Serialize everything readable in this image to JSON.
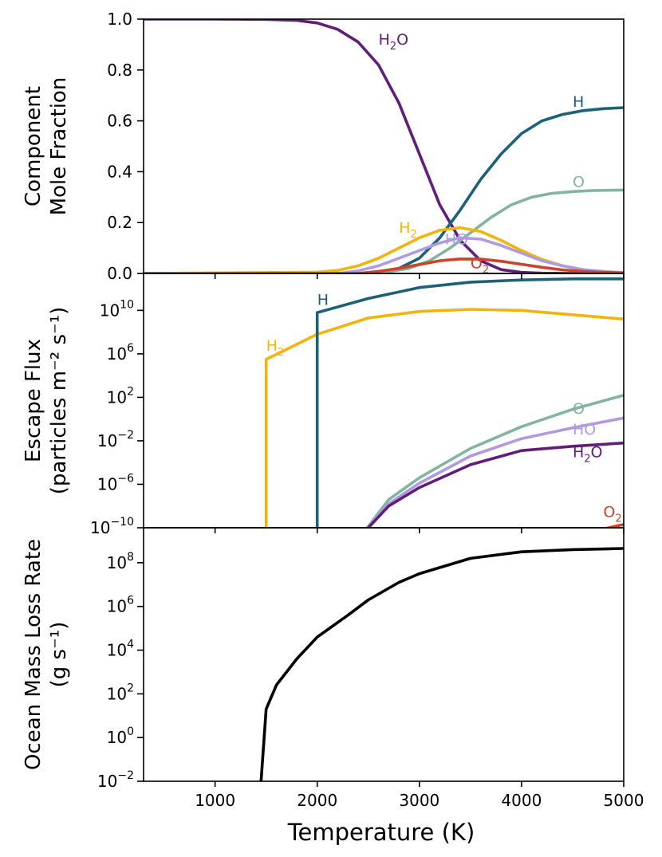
{
  "chart_data": [
    {
      "type": "line",
      "ylabel": [
        "Component",
        "Mole Fraction"
      ],
      "yscale": "linear",
      "xlim": [
        300,
        5000
      ],
      "ylim": [
        0,
        1.0
      ],
      "yticks": [
        "0.0",
        "0.2",
        "0.4",
        "0.6",
        "0.8",
        "1.0"
      ],
      "series": [
        {
          "name": "H2O",
          "color": "#601e7a",
          "x": [
            300,
            1000,
            1500,
            1800,
            2000,
            2200,
            2400,
            2600,
            2800,
            3000,
            3200,
            3400,
            3600,
            3800,
            4000,
            4200,
            4500,
            5000
          ],
          "y": [
            1.0,
            1.0,
            0.999,
            0.995,
            0.985,
            0.96,
            0.91,
            0.82,
            0.67,
            0.47,
            0.27,
            0.13,
            0.05,
            0.015,
            0.004,
            0.001,
            0.0,
            0.0
          ]
        },
        {
          "name": "H",
          "color": "#1c6179",
          "x": [
            300,
            2500,
            2800,
            3000,
            3200,
            3400,
            3600,
            3800,
            4000,
            4200,
            4400,
            4600,
            4800,
            5000
          ],
          "y": [
            0,
            0.0,
            0.02,
            0.06,
            0.14,
            0.25,
            0.37,
            0.47,
            0.55,
            0.6,
            0.625,
            0.64,
            0.648,
            0.652
          ]
        },
        {
          "name": "O",
          "color": "#82b4a0",
          "x": [
            300,
            2600,
            2900,
            3100,
            3300,
            3500,
            3700,
            3900,
            4100,
            4300,
            4500,
            4700,
            5000
          ],
          "y": [
            0,
            0.0,
            0.02,
            0.05,
            0.1,
            0.16,
            0.22,
            0.27,
            0.3,
            0.315,
            0.322,
            0.326,
            0.328
          ]
        },
        {
          "name": "H2",
          "color": "#f1b408",
          "x": [
            300,
            2000,
            2200,
            2400,
            2600,
            2800,
            3000,
            3200,
            3400,
            3600,
            3800,
            4000,
            4200,
            4400,
            4600,
            4800,
            5000
          ],
          "y": [
            0,
            0.005,
            0.012,
            0.03,
            0.06,
            0.1,
            0.14,
            0.17,
            0.18,
            0.165,
            0.13,
            0.09,
            0.055,
            0.03,
            0.015,
            0.007,
            0.003
          ]
        },
        {
          "name": "HO",
          "color": "#b09be2",
          "x": [
            300,
            2200,
            2400,
            2600,
            2800,
            3000,
            3200,
            3400,
            3600,
            3800,
            4000,
            4200,
            4400,
            4600,
            4800,
            5000
          ],
          "y": [
            0,
            0.0,
            0.01,
            0.03,
            0.06,
            0.09,
            0.12,
            0.14,
            0.135,
            0.11,
            0.08,
            0.05,
            0.03,
            0.015,
            0.008,
            0.003
          ]
        },
        {
          "name": "O2",
          "color": "#cd432c",
          "x": [
            300,
            2400,
            2600,
            2800,
            3000,
            3200,
            3400,
            3600,
            3800,
            4000,
            4200,
            4400,
            4600,
            4800,
            5000
          ],
          "y": [
            0,
            0.0,
            0.008,
            0.02,
            0.035,
            0.05,
            0.057,
            0.056,
            0.048,
            0.036,
            0.024,
            0.014,
            0.008,
            0.004,
            0.002
          ]
        }
      ],
      "annotations": [
        {
          "base": "H",
          "sub": "2",
          "tail": "O",
          "color": "#601e7a",
          "x": 2600,
          "y": 0.9
        },
        {
          "base": "H",
          "sub": "",
          "tail": "",
          "color": "#1c6179",
          "x": 4500,
          "y": 0.655
        },
        {
          "base": "O",
          "sub": "",
          "tail": "",
          "color": "#82b4a0",
          "x": 4500,
          "y": 0.34
        },
        {
          "base": "H",
          "sub": "2",
          "tail": "",
          "color": "#f1b408",
          "x": 2800,
          "y": 0.16
        },
        {
          "base": "HO",
          "sub": "",
          "tail": "",
          "color": "#b09be2",
          "x": 3250,
          "y": 0.115
        },
        {
          "base": "O",
          "sub": "2",
          "tail": "",
          "color": "#cd432c",
          "x": 3500,
          "y": 0.02
        }
      ]
    },
    {
      "type": "line",
      "ylabel": [
        "Escape Flux",
        "(particles m⁻² s⁻¹)"
      ],
      "yscale": "log",
      "xlim": [
        300,
        5000
      ],
      "ylim_exp": [
        -10,
        13.4
      ],
      "yticks": [
        {
          "base": "10",
          "exp": "10",
          "e": 10
        },
        {
          "base": "10",
          "exp": "6",
          "e": 6
        },
        {
          "base": "10",
          "exp": "2",
          "e": 2
        },
        {
          "base": "10",
          "exp": "−2",
          "e": -2
        },
        {
          "base": "10",
          "exp": "−6",
          "e": -6
        },
        {
          "base": "10",
          "exp": "−10",
          "e": -10
        }
      ],
      "series": [
        {
          "name": "H2",
          "color": "#f1b408",
          "x": [
            1500,
            1500,
            2000,
            2500,
            3000,
            3500,
            4000,
            4500,
            5000
          ],
          "log10y": [
            -10.5,
            5.5,
            7.8,
            9.3,
            9.9,
            10.1,
            10.0,
            9.6,
            9.2
          ]
        },
        {
          "name": "H",
          "color": "#1c6179",
          "x": [
            2000,
            2000,
            2500,
            3000,
            3500,
            4000,
            4500,
            5000
          ],
          "log10y": [
            -10.5,
            9.8,
            11.1,
            12.1,
            12.6,
            12.8,
            12.9,
            12.9
          ]
        },
        {
          "name": "O",
          "color": "#82b4a0",
          "x": [
            2450,
            2700,
            3000,
            3500,
            4000,
            4500,
            5000
          ],
          "log10y": [
            -10.5,
            -7.4,
            -5.4,
            -2.7,
            -0.7,
            0.9,
            2.2
          ]
        },
        {
          "name": "HO",
          "color": "#b09be2",
          "x": [
            2450,
            2700,
            3000,
            3500,
            4000,
            4500,
            5000
          ],
          "log10y": [
            -10.5,
            -7.8,
            -5.9,
            -3.4,
            -1.8,
            -0.8,
            0.1
          ]
        },
        {
          "name": "H2O",
          "color": "#601e7a",
          "x": [
            2450,
            2700,
            3000,
            3500,
            4000,
            4500,
            5000
          ],
          "log10y": [
            -10.5,
            -8.0,
            -6.3,
            -4.2,
            -2.9,
            -2.5,
            -2.2
          ]
        },
        {
          "name": "O2",
          "color": "#cd432c",
          "x": [
            4700,
            4850,
            5000
          ],
          "log10y": [
            -10.5,
            -10.0,
            -9.7
          ]
        }
      ],
      "annotations": [
        {
          "base": "H",
          "sub": "",
          "tail": "",
          "color": "#1c6179",
          "x": 2000,
          "e": 10.5
        },
        {
          "base": "H",
          "sub": "2",
          "tail": "",
          "color": "#f1b408",
          "x": 1500,
          "e": 6.3
        },
        {
          "base": "O",
          "sub": "",
          "tail": "",
          "color": "#82b4a0",
          "x": 4500,
          "e": 0.5
        },
        {
          "base": "HO",
          "sub": "",
          "tail": "",
          "color": "#b09be2",
          "x": 4500,
          "e": -1.4
        },
        {
          "base": "H",
          "sub": "2",
          "tail": "O",
          "color": "#601e7a",
          "x": 4500,
          "e": -3.5
        },
        {
          "base": "O",
          "sub": "2",
          "tail": "",
          "color": "#cd432c",
          "x": 4800,
          "e": -9.0
        }
      ]
    },
    {
      "type": "line",
      "ylabel": [
        "Ocean Mass Loss Rate",
        "(g s⁻¹)"
      ],
      "yscale": "log",
      "xlim": [
        300,
        5000
      ],
      "ylim_exp": [
        -2,
        9.6
      ],
      "yticks": [
        {
          "base": "10",
          "exp": "8",
          "e": 8
        },
        {
          "base": "10",
          "exp": "6",
          "e": 6
        },
        {
          "base": "10",
          "exp": "4",
          "e": 4
        },
        {
          "base": "10",
          "exp": "2",
          "e": 2
        },
        {
          "base": "10",
          "exp": "0",
          "e": 0
        },
        {
          "base": "10",
          "exp": "−2",
          "e": -2
        }
      ],
      "series": [
        {
          "name": "Ocean Mass Loss",
          "color": "#000000",
          "x": [
            1450,
            1500,
            1600,
            1800,
            2000,
            2300,
            2500,
            2800,
            3000,
            3500,
            4000,
            4500,
            5000
          ],
          "log10y": [
            -2.0,
            1.3,
            2.4,
            3.6,
            4.6,
            5.6,
            6.3,
            7.1,
            7.5,
            8.2,
            8.5,
            8.6,
            8.65
          ]
        }
      ],
      "annotations": []
    }
  ],
  "x_axis": {
    "label": "Temperature (K)",
    "ticks": [
      "1000",
      "2000",
      "3000",
      "4000",
      "5000"
    ],
    "tick_values": [
      1000,
      2000,
      3000,
      4000,
      5000
    ]
  }
}
